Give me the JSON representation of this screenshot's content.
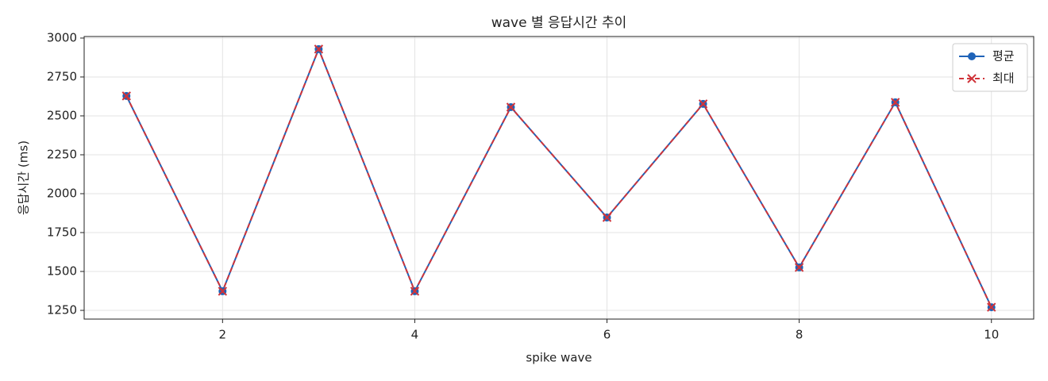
{
  "chart_data": {
    "type": "line",
    "title": "wave 별 응답시간 추이",
    "x_label": "spike wave",
    "y_label": "응답시간 (ms)",
    "x": [
      1,
      2,
      3,
      4,
      5,
      6,
      7,
      8,
      9,
      10
    ],
    "series": [
      {
        "name": "평균",
        "color": "#1f63b8",
        "marker": "circle",
        "dash": false,
        "values": [
          2628,
          1373,
          2929,
          1373,
          2556,
          1847,
          2577,
          1526,
          2587,
          1270
        ]
      },
      {
        "name": "최대",
        "color": "#d0343a",
        "marker": "x",
        "dash": true,
        "values": [
          2628,
          1373,
          2929,
          1373,
          2556,
          1847,
          2577,
          1526,
          2587,
          1270
        ]
      }
    ],
    "xlim": [
      0.56,
      10.44
    ],
    "ylim": [
      1194,
      3010
    ],
    "xticks": [
      2,
      4,
      6,
      8,
      10
    ],
    "yticks": [
      1250,
      1500,
      1750,
      2000,
      2250,
      2500,
      2750,
      3000
    ],
    "grid": true,
    "legend": "upper right"
  }
}
